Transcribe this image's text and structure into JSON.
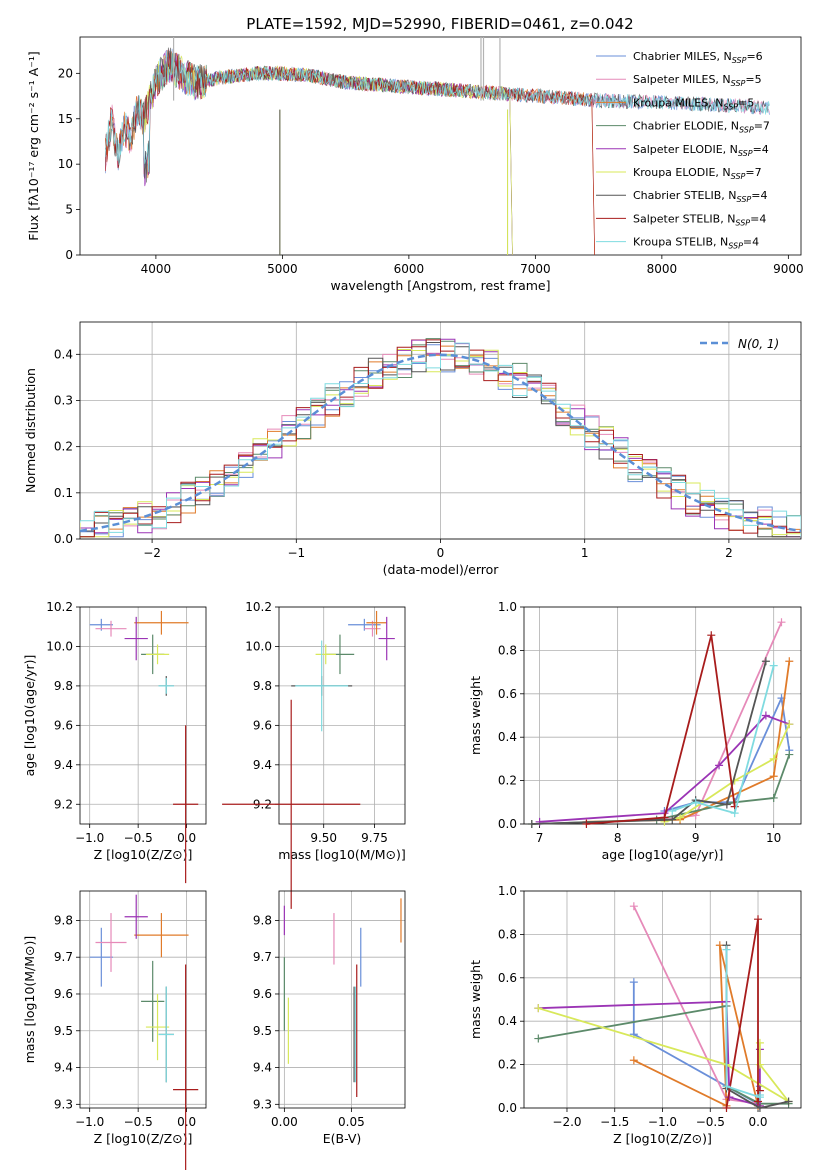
{
  "figure_title": "PLATE=1592, MJD=52990, FIBERID=0461, z=0.042",
  "colors": [
    "#6a8fd9",
    "#e68ab9",
    "#e07b2a",
    "#5c8a6a",
    "#9b34b5",
    "#d8e85a",
    "#555555",
    "#a81c1c",
    "#7fdbe0"
  ],
  "chart_data": [
    {
      "id": "spectrum",
      "type": "line",
      "xlabel": "wavelength [Angstrom, rest frame]",
      "ylabel": "Flux [fλ10⁻¹⁷ erg cm⁻² s⁻¹ A⁻¹]",
      "xlim": [
        3400,
        9100
      ],
      "ylim": [
        0,
        24
      ],
      "xticks": [
        4000,
        5000,
        6000,
        7000,
        8000,
        9000
      ],
      "yticks": [
        0,
        5,
        10,
        15,
        20
      ],
      "legend_position": "top-right",
      "legend": [
        "Chabrier MILES, N_SSP=6",
        "Salpeter MILES, N_SSP=5",
        "Kroupa MILES, N_SSP=5",
        "Chabrier ELODIE, N_SSP=7",
        "Salpeter ELODIE, N_SSP=4",
        "Kroupa ELODIE, N_SSP=7",
        "Chabrier STELIB, N_SSP=4",
        "Salpeter STELIB, N_SSP=4",
        "Kroupa STELIB, N_SSP=4"
      ],
      "coverage": [
        [
          3600,
          8850
        ],
        [
          3600,
          8850
        ],
        [
          3600,
          7450
        ],
        [
          3900,
          6800
        ],
        [
          3900,
          6800
        ],
        [
          3900,
          6800
        ],
        [
          3600,
          8850
        ],
        [
          3600,
          7450
        ],
        [
          3600,
          8850
        ]
      ],
      "profile_x": [
        3600,
        3650,
        3700,
        3750,
        3800,
        3850,
        3900,
        3950,
        4000,
        4050,
        4100,
        4200,
        4300,
        4500,
        4800,
        5000,
        5200,
        5500,
        6000,
        6500,
        7000,
        7500,
        8000,
        8500,
        8850
      ],
      "profile_y": [
        11,
        15,
        11,
        14,
        13,
        16,
        15,
        17,
        19,
        20,
        21,
        20,
        19,
        19.5,
        20,
        20,
        19.8,
        19,
        18.5,
        18,
        17.5,
        17,
        16.8,
        16.5,
        16.2
      ]
    },
    {
      "id": "residual-histogram",
      "type": "step",
      "xlabel": "(data-model)/error",
      "ylabel": "Normed distribution",
      "xlim": [
        -2.5,
        2.5
      ],
      "ylim": [
        0,
        0.47
      ],
      "xticks": [
        -2,
        -1,
        0,
        1,
        2
      ],
      "yticks": [
        0.0,
        0.1,
        0.2,
        0.3,
        0.4
      ],
      "legend": [
        "N(0,1)"
      ],
      "legend_position": "top-right",
      "bin_width": 0.1,
      "gaussian": {
        "mean": 0,
        "sigma": 1
      }
    },
    {
      "id": "age-vs-z",
      "type": "errorbar",
      "xlabel": "Z [log10(Z/Z⊙)]",
      "ylabel": "age [log10(age/yr)]",
      "xlim": [
        -1.1,
        0.2
      ],
      "ylim": [
        9.1,
        10.2
      ],
      "xticks": [
        -1.0,
        -0.5,
        0.0
      ],
      "yticks": [
        9.2,
        9.4,
        9.6,
        9.8,
        10.0,
        10.2
      ],
      "points": [
        {
          "x": -0.88,
          "xerr": 0.12,
          "y": 10.11,
          "yerr": 0.03
        },
        {
          "x": -0.78,
          "xerr": 0.16,
          "y": 10.09,
          "yerr": 0.04
        },
        {
          "x": -0.26,
          "xerr": 0.28,
          "y": 10.12,
          "yerr": 0.06
        },
        {
          "x": -0.35,
          "xerr": 0.12,
          "y": 9.96,
          "yerr": 0.1
        },
        {
          "x": -0.52,
          "xerr": 0.12,
          "y": 10.04,
          "yerr": 0.11
        },
        {
          "x": -0.3,
          "xerr": 0.12,
          "y": 9.96,
          "yerr": 0.05
        },
        {
          "x": -0.21,
          "xerr": 0.08,
          "y": 9.8,
          "yerr": 0.05
        },
        {
          "x": -0.01,
          "xerr": 0.13,
          "y": 9.2,
          "yerr": 0.4
        },
        {
          "x": -0.21,
          "xerr": 0.08,
          "y": 9.8,
          "yerr": 0.04
        }
      ]
    },
    {
      "id": "age-vs-mass",
      "type": "errorbar",
      "xlabel": "mass [log10(M/M⊙)]",
      "ylabel": "",
      "xlim": [
        9.28,
        9.9
      ],
      "ylim": [
        9.1,
        10.2
      ],
      "xticks": [
        9.5,
        9.75
      ],
      "yticks": [
        9.2,
        9.4,
        9.6,
        9.8,
        10.0,
        10.2
      ],
      "points": [
        {
          "x": 9.7,
          "xerr": 0.08,
          "y": 10.11,
          "yerr": 0.03
        },
        {
          "x": 9.74,
          "xerr": 0.04,
          "y": 10.09,
          "yerr": 0.04
        },
        {
          "x": 9.76,
          "xerr": 0.05,
          "y": 10.12,
          "yerr": 0.06
        },
        {
          "x": 9.58,
          "xerr": 0.07,
          "y": 9.96,
          "yerr": 0.1
        },
        {
          "x": 9.81,
          "xerr": 0.04,
          "y": 10.04,
          "yerr": 0.11
        },
        {
          "x": 9.51,
          "xerr": 0.05,
          "y": 9.96,
          "yerr": 0.05
        },
        {
          "x": 9.49,
          "xerr": 0.15,
          "y": 9.8,
          "yerr": 0.05
        },
        {
          "x": 9.34,
          "xerr": 0.34,
          "y": 9.2,
          "yerr": 0.53
        },
        {
          "x": 9.49,
          "xerr": 0.13,
          "y": 9.8,
          "yerr": 0.23
        }
      ]
    },
    {
      "id": "weight-vs-age",
      "type": "line",
      "xlabel": "age [log10(age/yr)]",
      "ylabel": "mass weight",
      "xlim": [
        6.8,
        10.35
      ],
      "ylim": [
        0.0,
        1.0
      ],
      "xticks": [
        7,
        8,
        9,
        10
      ],
      "yticks": [
        0.0,
        0.2,
        0.4,
        0.6,
        0.8,
        1.0
      ],
      "series": [
        {
          "x": [
            8.6,
            9.0,
            9.5,
            10.1,
            10.2
          ],
          "y": [
            0.06,
            0.1,
            0.1,
            0.58,
            0.34
          ]
        },
        {
          "x": [
            8.6,
            9.0,
            10.1
          ],
          "y": [
            0.02,
            0.04,
            0.93
          ]
        },
        {
          "x": [
            7.6,
            8.8,
            10.0,
            10.2
          ],
          "y": [
            0.01,
            0.02,
            0.22,
            0.75
          ]
        },
        {
          "x": [
            6.9,
            8.5,
            9.5,
            10.0,
            10.2
          ],
          "y": [
            0.0,
            0.02,
            0.1,
            0.12,
            0.32
          ]
        },
        {
          "x": [
            7.0,
            8.6,
            9.3,
            9.9,
            10.2
          ],
          "y": [
            0.01,
            0.05,
            0.27,
            0.5,
            0.46
          ]
        },
        {
          "x": [
            8.6,
            8.8,
            9.5,
            10.0,
            10.2
          ],
          "y": [
            0.01,
            0.03,
            0.2,
            0.3,
            0.46
          ]
        },
        {
          "x": [
            6.9,
            8.7,
            9.0,
            9.4,
            9.9
          ],
          "y": [
            0.0,
            0.02,
            0.11,
            0.09,
            0.75
          ]
        },
        {
          "x": [
            7.6,
            8.6,
            9.2,
            9.5
          ],
          "y": [
            0.0,
            0.03,
            0.87,
            0.08
          ]
        },
        {
          "x": [
            8.7,
            9.0,
            9.5,
            10.0
          ],
          "y": [
            0.06,
            0.1,
            0.05,
            0.73
          ]
        }
      ]
    },
    {
      "id": "mass-vs-z",
      "type": "errorbar",
      "xlabel": "Z [log10(Z/Z⊙)]",
      "ylabel": "mass [log10(M/M⊙)]",
      "xlim": [
        -1.1,
        0.2
      ],
      "ylim": [
        9.29,
        9.88
      ],
      "xticks": [
        -1.0,
        -0.5,
        0.0
      ],
      "yticks": [
        9.3,
        9.4,
        9.5,
        9.6,
        9.7,
        9.8
      ],
      "points": [
        {
          "x": -0.88,
          "xerr": 0.12,
          "y": 9.7,
          "yerr": 0.08
        },
        {
          "x": -0.78,
          "xerr": 0.16,
          "y": 9.74,
          "yerr": 0.08
        },
        {
          "x": -0.26,
          "xerr": 0.28,
          "y": 9.76,
          "yerr": 0.06
        },
        {
          "x": -0.35,
          "xerr": 0.12,
          "y": 9.58,
          "yerr": 0.11
        },
        {
          "x": -0.52,
          "xerr": 0.12,
          "y": 9.81,
          "yerr": 0.06
        },
        {
          "x": -0.3,
          "xerr": 0.12,
          "y": 9.51,
          "yerr": 0.09
        },
        {
          "x": -0.21,
          "xerr": 0.08,
          "y": 9.49,
          "yerr": 0.13
        },
        {
          "x": -0.01,
          "xerr": 0.13,
          "y": 9.34,
          "yerr": 0.34
        },
        {
          "x": -0.21,
          "xerr": 0.08,
          "y": 9.49,
          "yerr": 0.13
        }
      ]
    },
    {
      "id": "mass-vs-ebv",
      "type": "errorbar",
      "xlabel": "E(B-V)",
      "ylabel": "",
      "xlim": [
        -0.004,
        0.09
      ],
      "ylim": [
        9.29,
        9.88
      ],
      "xticks": [
        0.0,
        0.05
      ],
      "yticks": [
        9.3,
        9.4,
        9.5,
        9.6,
        9.7,
        9.8
      ],
      "points": [
        {
          "x": 0.057,
          "y": 9.7,
          "yerr": 0.08
        },
        {
          "x": 0.037,
          "y": 9.75,
          "yerr": 0.07
        },
        {
          "x": 0.087,
          "y": 9.8,
          "yerr": 0.06
        },
        {
          "x": 0.0,
          "y": 9.6,
          "yerr": 0.1
        },
        {
          "x": 0.0,
          "y": 9.8,
          "yerr": 0.04
        },
        {
          "x": 0.003,
          "y": 9.5,
          "yerr": 0.09
        },
        {
          "x": 0.052,
          "y": 9.49,
          "yerr": 0.13
        },
        {
          "x": 0.054,
          "y": 9.5,
          "yerr": 0.18
        },
        {
          "x": 0.053,
          "y": 9.49,
          "yerr": 0.13
        }
      ]
    },
    {
      "id": "weight-vs-z",
      "type": "line",
      "xlabel": "Z [log10(Z/Z⊙)]",
      "ylabel": "mass weight",
      "xlim": [
        -2.45,
        0.45
      ],
      "ylim": [
        0.0,
        1.0
      ],
      "xticks": [
        -2.0,
        -1.5,
        -1.0,
        -0.5,
        0.0
      ],
      "yticks": [
        0.0,
        0.2,
        0.4,
        0.6,
        0.8,
        1.0
      ],
      "series": [
        {
          "x": [
            -1.3,
            -1.3,
            -0.33,
            0.0,
            0.02
          ],
          "y": [
            0.58,
            0.34,
            0.1,
            0.02,
            0.1
          ]
        },
        {
          "x": [
            -1.3,
            -0.33,
            0.02
          ],
          "y": [
            0.93,
            0.04,
            0.02
          ]
        },
        {
          "x": [
            -1.3,
            -0.33,
            -0.4,
            0.0,
            0.02
          ],
          "y": [
            0.22,
            0.01,
            0.75,
            0.01,
            0.02
          ]
        },
        {
          "x": [
            -2.3,
            -0.33,
            -0.33,
            0.02,
            0.32
          ],
          "y": [
            0.32,
            0.47,
            0.1,
            0.02,
            0.02
          ]
        },
        {
          "x": [
            -2.3,
            -0.33,
            -0.3,
            0.02,
            0.02
          ],
          "y": [
            0.46,
            0.49,
            0.05,
            0.01,
            0.27
          ]
        },
        {
          "x": [
            -2.3,
            -0.33,
            0.32,
            0.02,
            0.02
          ],
          "y": [
            0.46,
            0.2,
            0.03,
            0.2,
            0.3
          ]
        },
        {
          "x": [
            -0.33,
            -0.33,
            0.02,
            0.32
          ],
          "y": [
            0.75,
            0.09,
            0.0,
            0.03
          ]
        },
        {
          "x": [
            -0.33,
            0.0,
            0.0,
            0.02
          ],
          "y": [
            0.0,
            0.87,
            0.03,
            0.08
          ]
        },
        {
          "x": [
            -0.33,
            -0.33,
            0.02,
            0.02
          ],
          "y": [
            0.73,
            0.1,
            0.05,
            0.06
          ]
        }
      ]
    }
  ]
}
